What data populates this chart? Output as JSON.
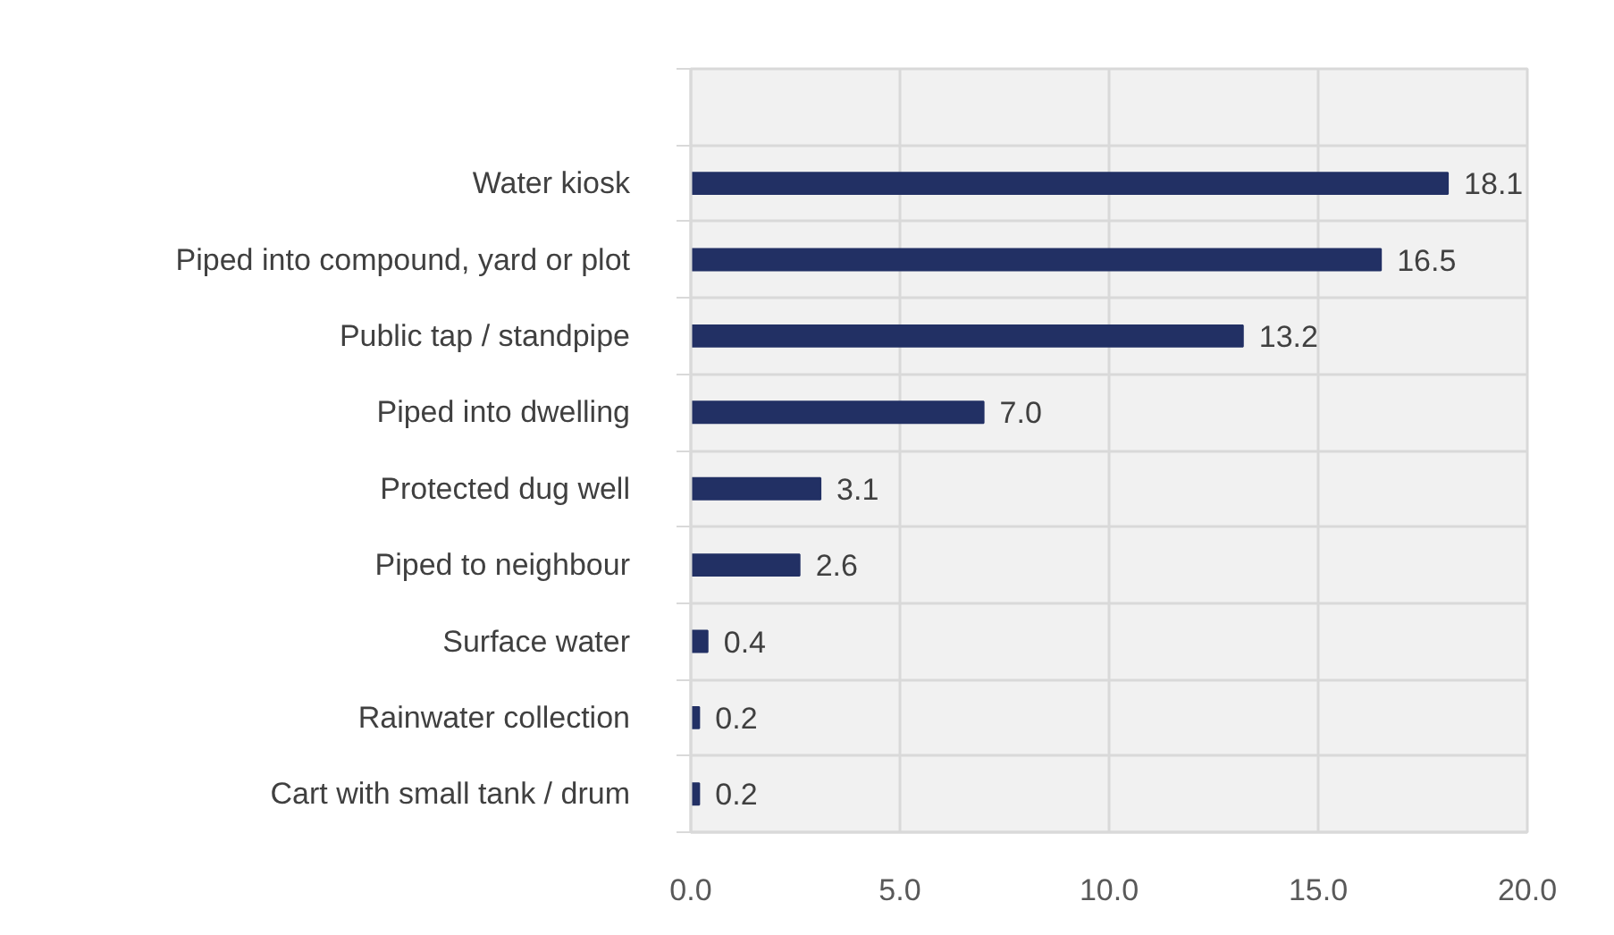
{
  "chart_data": {
    "type": "bar",
    "orientation": "horizontal",
    "categories": [
      null,
      "Water kiosk",
      "Piped into compound, yard or plot",
      "Public tap / standpipe",
      "Piped into dwelling",
      "Protected dug well",
      "Piped to neighbour",
      "Surface water",
      "Rainwater collection",
      "Cart with small tank / drum"
    ],
    "values": [
      null,
      18.1,
      16.5,
      13.2,
      7.0,
      3.1,
      2.6,
      0.4,
      0.2,
      0.2
    ],
    "value_labels": [
      null,
      "18.1",
      "16.5",
      "13.2",
      "7.0",
      "3.1",
      "2.6",
      "0.4",
      "0.2",
      "0.2"
    ],
    "color": "#223064",
    "xlim": [
      0,
      20
    ],
    "xticks": [
      {
        "value": 0,
        "label": "0.0"
      },
      {
        "value": 5,
        "label": "5.0"
      },
      {
        "value": 10,
        "label": "10.0"
      },
      {
        "value": 15,
        "label": "15.0"
      },
      {
        "value": 20,
        "label": "20.0"
      }
    ],
    "grid": true
  }
}
